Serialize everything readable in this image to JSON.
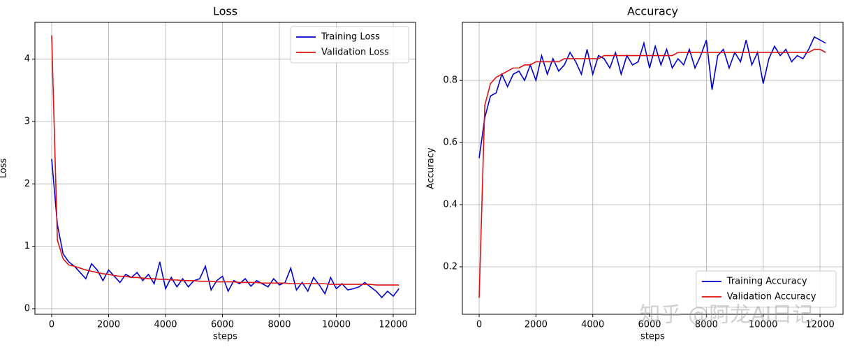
{
  "chart_data": [
    {
      "type": "line",
      "title": "Loss",
      "xlabel": "steps",
      "ylabel": "Loss",
      "x": [
        0,
        200,
        400,
        600,
        800,
        1000,
        1200,
        1400,
        1600,
        1800,
        2000,
        2200,
        2400,
        2600,
        2800,
        3000,
        3200,
        3400,
        3600,
        3800,
        4000,
        4200,
        4400,
        4600,
        4800,
        5000,
        5200,
        5400,
        5600,
        5800,
        6000,
        6200,
        6400,
        6600,
        6800,
        7000,
        7200,
        7400,
        7600,
        7800,
        8000,
        8200,
        8400,
        8600,
        8800,
        9000,
        9200,
        9400,
        9600,
        9800,
        10000,
        10200,
        10400,
        10600,
        10800,
        11000,
        11200,
        11400,
        11600,
        11800,
        12000,
        12200
      ],
      "series": [
        {
          "name": "Training Loss",
          "color": "#0000cc",
          "values": [
            2.4,
            1.35,
            0.88,
            0.75,
            0.68,
            0.58,
            0.48,
            0.72,
            0.62,
            0.45,
            0.62,
            0.52,
            0.42,
            0.55,
            0.5,
            0.58,
            0.45,
            0.55,
            0.4,
            0.75,
            0.32,
            0.5,
            0.35,
            0.48,
            0.35,
            0.45,
            0.48,
            0.68,
            0.3,
            0.45,
            0.52,
            0.28,
            0.45,
            0.4,
            0.48,
            0.36,
            0.45,
            0.4,
            0.35,
            0.48,
            0.38,
            0.42,
            0.65,
            0.3,
            0.42,
            0.28,
            0.5,
            0.38,
            0.24,
            0.5,
            0.32,
            0.4,
            0.3,
            0.32,
            0.35,
            0.42,
            0.35,
            0.28,
            0.18,
            0.28,
            0.2,
            0.32
          ]
        },
        {
          "name": "Validation Loss",
          "color": "#dd1111",
          "values": [
            4.38,
            1.1,
            0.8,
            0.7,
            0.68,
            0.65,
            0.62,
            0.6,
            0.58,
            0.56,
            0.55,
            0.53,
            0.52,
            0.52,
            0.5,
            0.5,
            0.49,
            0.48,
            0.48,
            0.47,
            0.47,
            0.46,
            0.46,
            0.45,
            0.45,
            0.45,
            0.44,
            0.44,
            0.44,
            0.43,
            0.43,
            0.43,
            0.43,
            0.42,
            0.42,
            0.42,
            0.42,
            0.41,
            0.41,
            0.41,
            0.41,
            0.41,
            0.4,
            0.4,
            0.4,
            0.4,
            0.4,
            0.4,
            0.4,
            0.39,
            0.39,
            0.39,
            0.39,
            0.39,
            0.39,
            0.39,
            0.39,
            0.38,
            0.38,
            0.38,
            0.38,
            0.38
          ]
        }
      ],
      "xlim": [
        -589,
        12785
      ],
      "xticks": [
        0,
        2000,
        4000,
        6000,
        8000,
        10000,
        12000
      ],
      "ylim": [
        -0.09,
        4.59
      ],
      "yticks": [
        0,
        1,
        2,
        3,
        4
      ],
      "grid": true,
      "legend": "upper right"
    },
    {
      "type": "line",
      "title": "Accuracy",
      "xlabel": "steps",
      "ylabel": "Accuracy",
      "x": [
        0,
        200,
        400,
        600,
        800,
        1000,
        1200,
        1400,
        1600,
        1800,
        2000,
        2200,
        2400,
        2600,
        2800,
        3000,
        3200,
        3400,
        3600,
        3800,
        4000,
        4200,
        4400,
        4600,
        4800,
        5000,
        5200,
        5400,
        5600,
        5800,
        6000,
        6200,
        6400,
        6600,
        6800,
        7000,
        7200,
        7400,
        7600,
        7800,
        8000,
        8200,
        8400,
        8600,
        8800,
        9000,
        9200,
        9400,
        9600,
        9800,
        10000,
        10200,
        10400,
        10600,
        10800,
        11000,
        11200,
        11400,
        11600,
        11800,
        12000,
        12200
      ],
      "series": [
        {
          "name": "Training Accuracy",
          "color": "#0000cc",
          "values": [
            0.55,
            0.68,
            0.75,
            0.76,
            0.82,
            0.78,
            0.82,
            0.83,
            0.8,
            0.85,
            0.8,
            0.88,
            0.82,
            0.87,
            0.83,
            0.85,
            0.89,
            0.86,
            0.82,
            0.9,
            0.82,
            0.88,
            0.87,
            0.84,
            0.89,
            0.82,
            0.88,
            0.85,
            0.86,
            0.92,
            0.84,
            0.91,
            0.85,
            0.9,
            0.84,
            0.87,
            0.85,
            0.9,
            0.84,
            0.88,
            0.93,
            0.77,
            0.88,
            0.9,
            0.84,
            0.89,
            0.86,
            0.93,
            0.85,
            0.89,
            0.79,
            0.87,
            0.91,
            0.88,
            0.9,
            0.86,
            0.88,
            0.87,
            0.9,
            0.94,
            0.93,
            0.92
          ]
        },
        {
          "name": "Validation Accuracy",
          "color": "#dd1111",
          "values": [
            0.1,
            0.72,
            0.79,
            0.81,
            0.82,
            0.83,
            0.84,
            0.84,
            0.85,
            0.85,
            0.86,
            0.86,
            0.86,
            0.86,
            0.86,
            0.87,
            0.87,
            0.87,
            0.87,
            0.87,
            0.87,
            0.87,
            0.88,
            0.88,
            0.88,
            0.88,
            0.88,
            0.88,
            0.88,
            0.88,
            0.88,
            0.88,
            0.88,
            0.88,
            0.88,
            0.89,
            0.89,
            0.89,
            0.89,
            0.89,
            0.89,
            0.89,
            0.89,
            0.89,
            0.89,
            0.89,
            0.89,
            0.89,
            0.89,
            0.89,
            0.89,
            0.89,
            0.89,
            0.89,
            0.89,
            0.89,
            0.89,
            0.89,
            0.89,
            0.9,
            0.9,
            0.89
          ]
        }
      ],
      "xlim": [
        -590,
        12810
      ],
      "xticks": [
        0,
        2000,
        4000,
        6000,
        8000,
        10000,
        12000
      ],
      "ylim": [
        0.047,
        0.987
      ],
      "yticks": [
        0.2,
        0.4,
        0.6,
        0.8
      ],
      "grid": true,
      "legend": "lower right"
    }
  ],
  "watermark": "知乎 @阿龙AI日记"
}
